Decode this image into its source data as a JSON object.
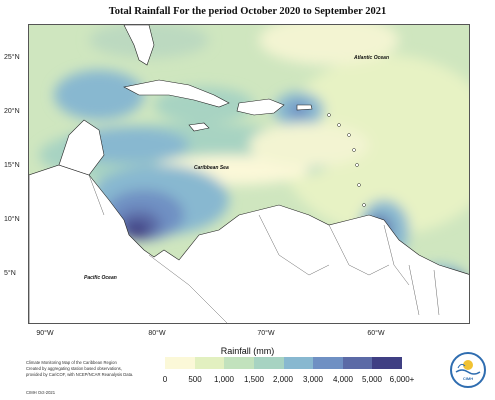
{
  "title": "Total Rainfall For the period October 2020 to September 2021",
  "map_labels": {
    "atlantic": "Atlantic Ocean",
    "caribbean": "Caribbean Sea",
    "pacific": "Pacific Ocean"
  },
  "lat_labels": [
    "25°N",
    "20°N",
    "15°N",
    "10°N",
    "5°N"
  ],
  "lon_labels": [
    "90°W",
    "80°W",
    "70°W",
    "60°W"
  ],
  "legend": {
    "title": "Rainfall (mm)",
    "ticks": [
      "0",
      "500",
      "1,000",
      "1,500",
      "2,000",
      "3,000",
      "4,000",
      "5,000",
      "6,000+"
    ],
    "colors": [
      "#fbf8d8",
      "#e2f0c0",
      "#c2e2bd",
      "#a7d3c2",
      "#88b8d0",
      "#6f90c3",
      "#5b6aa6",
      "#3f3f83"
    ]
  },
  "credit": {
    "line1": "Climate Monitoring Map of the Caribbean Region",
    "line2": "Created by aggregating station based observations,",
    "line3": "provided by CariCOF, with NCEP/NCAR Reanalysis Data.",
    "footer": "CIMH Oct-2021"
  },
  "logo": {
    "text": "CIMH"
  }
}
